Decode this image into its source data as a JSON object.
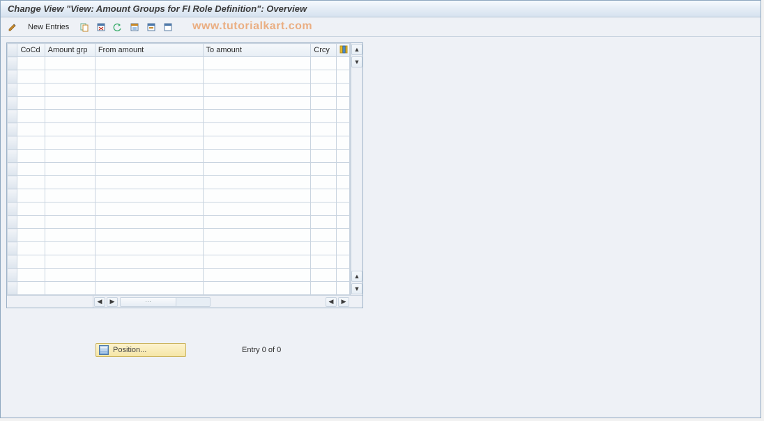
{
  "title": "Change View \"View: Amount Groups for FI Role Definition\": Overview",
  "toolbar": {
    "new_entries_label": "New Entries"
  },
  "watermark": "www.tutorialkart.com",
  "columns": {
    "sel": "",
    "cocd": "CoCd",
    "amount_grp": "Amount grp",
    "from_amount": "From amount",
    "to_amount": "To amount",
    "crcy": "Crcy"
  },
  "row_count": 18,
  "footer": {
    "position_label": "Position...",
    "entry_text": "Entry 0 of 0"
  },
  "colors": {
    "title_bg_top": "#f6fafe",
    "title_bg_bottom": "#d6e2ef",
    "border": "#c9d4e0",
    "accent_btn_top": "#fdf3ce",
    "accent_btn_bottom": "#f5e6a6",
    "watermark": "rgba(232,119,34,0.55)"
  }
}
